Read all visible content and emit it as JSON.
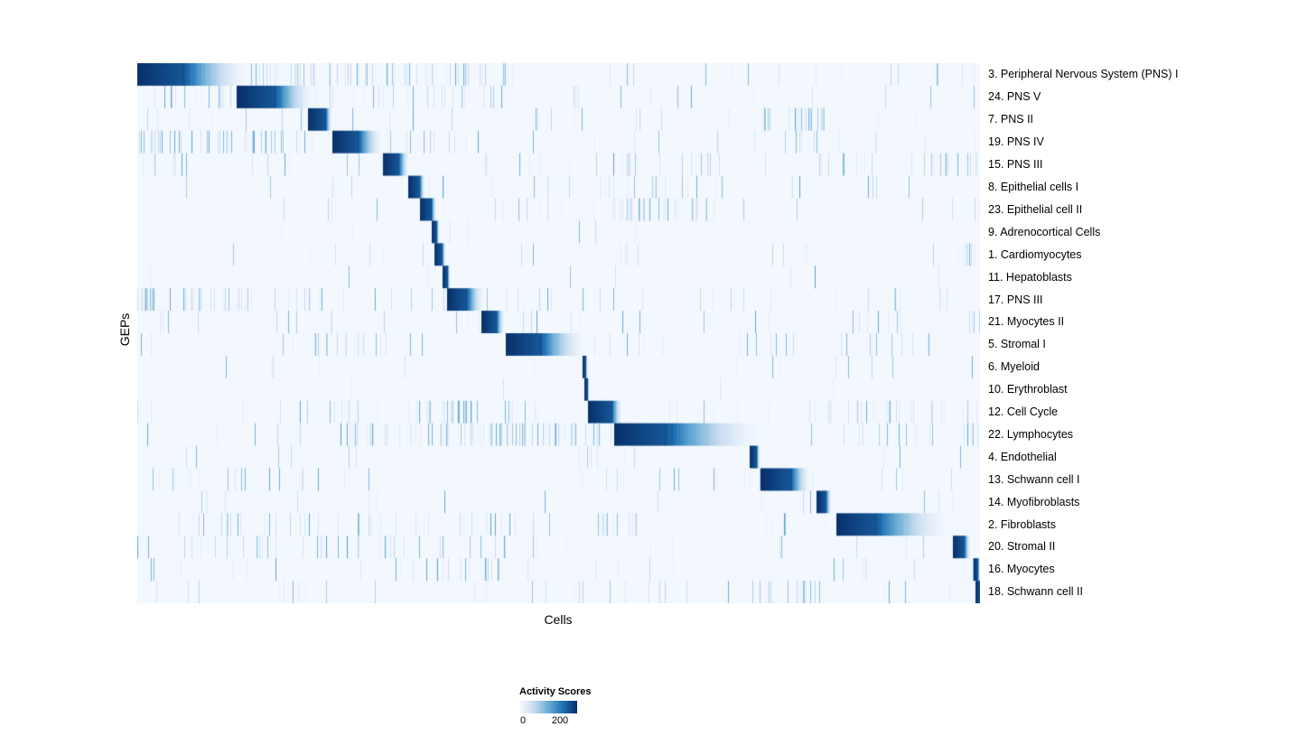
{
  "chart_data": {
    "type": "heatmap",
    "title": "",
    "xlabel": "Cells",
    "ylabel": "GEPs",
    "x_axis": {
      "tick_labels": [],
      "description": "individual cells, no tick labels shown"
    },
    "legend": {
      "title": "Activity Scores",
      "min": 0,
      "max": 200,
      "ticks": [
        {
          "label": "0"
        },
        {
          "label": "200"
        }
      ],
      "position": "bottom-center"
    },
    "colormap": "Blues",
    "colormap_stops": [
      [
        0.0,
        [
          247,
          251,
          255
        ]
      ],
      [
        0.25,
        [
          198,
          219,
          239
        ]
      ],
      [
        0.5,
        [
          107,
          174,
          214
        ]
      ],
      [
        0.75,
        [
          33,
          113,
          181
        ]
      ],
      [
        1.0,
        [
          8,
          48,
          107
        ]
      ]
    ],
    "grid": false,
    "n_rows": 24,
    "rows": [
      {
        "label": "3. Peripheral Nervous System (PNS) I",
        "block_start": 0.0,
        "block_solid": 0.055,
        "block_fade": 0.075,
        "noise": 0.03,
        "noise_bands": [
          [
            0.13,
            0.44,
            0.2
          ],
          [
            0.6,
            1.0,
            0.04
          ]
        ]
      },
      {
        "label": "24. PNS V",
        "block_start": 0.118,
        "block_solid": 0.045,
        "block_fade": 0.045,
        "noise": 0.03,
        "noise_bands": [
          [
            0.0,
            0.115,
            0.14
          ],
          [
            0.21,
            0.44,
            0.16
          ]
        ]
      },
      {
        "label": "7. PNS II",
        "block_start": 0.203,
        "block_solid": 0.02,
        "block_fade": 0.008,
        "noise": 0.025,
        "noise_bands": [
          [
            0.74,
            0.82,
            0.25
          ]
        ]
      },
      {
        "label": "19. PNS IV",
        "block_start": 0.232,
        "block_solid": 0.03,
        "block_fade": 0.028,
        "noise": 0.04,
        "noise_bands": [
          [
            0.0,
            0.23,
            0.2
          ],
          [
            0.3,
            0.42,
            0.12
          ]
        ]
      },
      {
        "label": "15. PNS III",
        "block_start": 0.292,
        "block_solid": 0.018,
        "block_fade": 0.012,
        "noise": 0.05,
        "noise_bands": [
          [
            0.55,
            0.68,
            0.12
          ],
          [
            0.8,
            1.0,
            0.12
          ]
        ]
      },
      {
        "label": "8. Epithelial cells I",
        "block_start": 0.322,
        "block_solid": 0.013,
        "block_fade": 0.006,
        "noise": 0.025,
        "noise_bands": [
          [
            0.55,
            0.68,
            0.1
          ]
        ]
      },
      {
        "label": "23. Epithelial cell II",
        "block_start": 0.336,
        "block_solid": 0.013,
        "block_fade": 0.006,
        "noise": 0.025,
        "noise_bands": [
          [
            0.55,
            0.7,
            0.18
          ]
        ]
      },
      {
        "label": "9. Adrenocortical Cells",
        "block_start": 0.349,
        "block_solid": 0.005,
        "block_fade": 0.003,
        "noise": 0.015,
        "noise_bands": []
      },
      {
        "label": "1. Cardiomyocytes",
        "block_start": 0.353,
        "block_solid": 0.009,
        "block_fade": 0.004,
        "noise": 0.015,
        "noise_bands": [
          [
            0.97,
            1.0,
            0.18
          ]
        ]
      },
      {
        "label": "11. Hepatoblasts",
        "block_start": 0.362,
        "block_solid": 0.005,
        "block_fade": 0.003,
        "noise": 0.012,
        "noise_bands": []
      },
      {
        "label": "17. PNS III",
        "block_start": 0.368,
        "block_solid": 0.022,
        "block_fade": 0.02,
        "noise": 0.04,
        "noise_bands": [
          [
            0.0,
            0.02,
            0.55
          ],
          [
            0.05,
            0.2,
            0.15
          ]
        ]
      },
      {
        "label": "21. Myocytes II",
        "block_start": 0.408,
        "block_solid": 0.017,
        "block_fade": 0.01,
        "noise": 0.03,
        "noise_bands": [
          [
            0.99,
            1.0,
            0.6
          ]
        ]
      },
      {
        "label": "5. Stromal I",
        "block_start": 0.437,
        "block_solid": 0.04,
        "block_fade": 0.052,
        "noise": 0.04,
        "noise_bands": [
          [
            0.2,
            0.3,
            0.14
          ],
          [
            0.8,
            0.88,
            0.14
          ]
        ]
      },
      {
        "label": "6. Myeloid",
        "block_start": 0.528,
        "block_solid": 0.003,
        "block_fade": 0.002,
        "noise": 0.012,
        "noise_bands": []
      },
      {
        "label": "10. Erythroblast",
        "block_start": 0.531,
        "block_solid": 0.003,
        "block_fade": 0.002,
        "noise": 0.012,
        "noise_bands": []
      },
      {
        "label": "12. Cell Cycle",
        "block_start": 0.535,
        "block_solid": 0.028,
        "block_fade": 0.012,
        "noise": 0.05,
        "noise_bands": [
          [
            0.2,
            0.45,
            0.15
          ],
          [
            0.8,
            1.0,
            0.12
          ]
        ]
      },
      {
        "label": "22. Lymphocytes",
        "block_start": 0.566,
        "block_solid": 0.06,
        "block_fade": 0.11,
        "noise": 0.05,
        "noise_bands": [
          [
            0.25,
            0.55,
            0.3
          ]
        ]
      },
      {
        "label": "4. Endothelial",
        "block_start": 0.727,
        "block_solid": 0.007,
        "block_fade": 0.004,
        "noise": 0.018,
        "noise_bands": []
      },
      {
        "label": "13. Schwann cell I",
        "block_start": 0.74,
        "block_solid": 0.035,
        "block_fade": 0.022,
        "noise": 0.04,
        "noise_bands": [
          [
            0.02,
            0.2,
            0.18
          ]
        ]
      },
      {
        "label": "14. Myofibroblasts",
        "block_start": 0.806,
        "block_solid": 0.011,
        "block_fade": 0.006,
        "noise": 0.02,
        "noise_bands": []
      },
      {
        "label": "2. Fibroblasts",
        "block_start": 0.83,
        "block_solid": 0.045,
        "block_fade": 0.085,
        "noise": 0.04,
        "noise_bands": [
          [
            0.05,
            0.45,
            0.12
          ],
          [
            0.55,
            0.6,
            0.15
          ]
        ]
      },
      {
        "label": "20. Stromal II",
        "block_start": 0.968,
        "block_solid": 0.013,
        "block_fade": 0.008,
        "noise": 0.035,
        "noise_bands": [
          [
            0.0,
            0.5,
            0.07
          ]
        ]
      },
      {
        "label": "16. Myocytes",
        "block_start": 0.993,
        "block_solid": 0.004,
        "block_fade": 0.003,
        "noise": 0.025,
        "noise_bands": [
          [
            0.35,
            0.44,
            0.14
          ]
        ]
      },
      {
        "label": "18. Schwann cell II",
        "block_start": 0.995,
        "block_solid": 0.005,
        "block_fade": 0.0,
        "noise": 0.035,
        "noise_bands": [
          [
            0.74,
            0.82,
            0.18
          ]
        ]
      }
    ]
  }
}
